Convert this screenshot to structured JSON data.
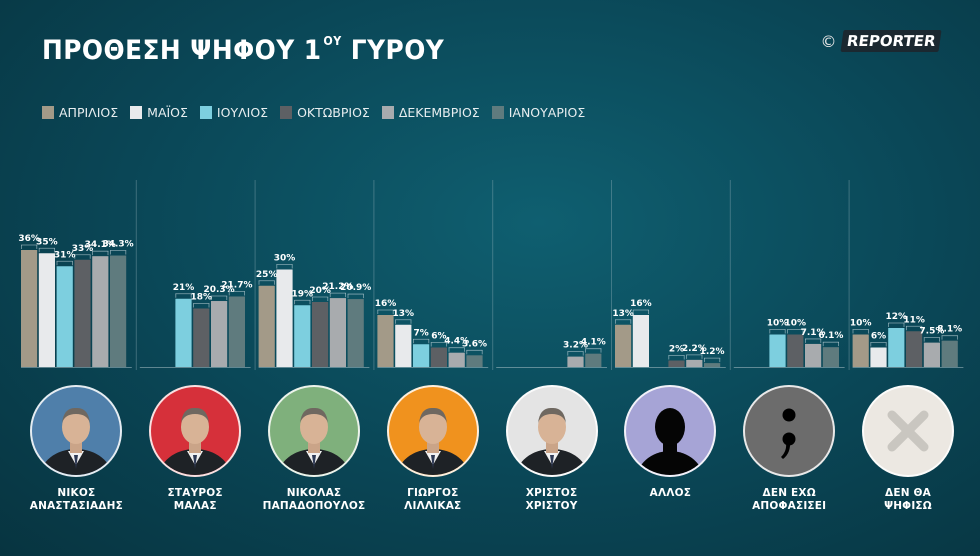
{
  "header": {
    "title": "ΠΡΟΘΕΣΗ ΨΗΦΟΥ 1",
    "title_sup": "ΟΥ",
    "title_end": " ΓΥΡΟΥ"
  },
  "logo": {
    "copyright": "©",
    "brand": "REPORTER"
  },
  "colors": {
    "april": "#a39a88",
    "may": "#e8eaec",
    "july": "#7dcfdf",
    "october": "#5d6064",
    "december": "#a8abae",
    "january": "#5f7b7e"
  },
  "chart_data": {
    "type": "bar",
    "series": [
      {
        "name": "ΑΠΡΙΛΙΟΣ",
        "color": "#a39a88"
      },
      {
        "name": "ΜΑΪΟΣ",
        "color": "#e8eaec"
      },
      {
        "name": "ΙΟΥΛΙΟΣ",
        "color": "#7dcfdf"
      },
      {
        "name": "ΟΚΤΩΒΡΙΟΣ",
        "color": "#5d6064"
      },
      {
        "name": "ΔΕΚΕΜΒΡΙΟΣ",
        "color": "#a8abae"
      },
      {
        "name": "ΙΑΝΟΥΑΡΙΟΣ",
        "color": "#5f7b7e"
      }
    ],
    "groups": [
      {
        "name_lines": [
          "ΝΙΚΟΣ",
          "ΑΝΑΣΤΑΣΙΑΔΗΣ"
        ],
        "values": [
          36,
          35,
          31,
          33,
          34.1,
          34.3
        ],
        "labels": [
          "36%",
          "35%",
          "31%",
          "33%",
          "34.1%",
          "34.3%"
        ],
        "avatar_bg": "#4f7faa",
        "avatar": "person"
      },
      {
        "name_lines": [
          "ΣΤΑΥΡΟΣ",
          "ΜΑΛΑΣ"
        ],
        "values": [
          null,
          null,
          21,
          18,
          20.3,
          21.7
        ],
        "labels": [
          "",
          "",
          "21%",
          "18%",
          "20.3%",
          "21.7%"
        ],
        "avatar_bg": "#d6303a",
        "avatar": "person"
      },
      {
        "name_lines": [
          "ΝΙΚΟΛΑΣ",
          "ΠΑΠΑΔΟΠΟΥΛΟΣ"
        ],
        "values": [
          25,
          30,
          19,
          20,
          21.2,
          20.9
        ],
        "labels": [
          "25%",
          "30%",
          "19%",
          "20%",
          "21.2%",
          "20.9%"
        ],
        "avatar_bg": "#7fb07c",
        "avatar": "person"
      },
      {
        "name_lines": [
          "ΓΙΩΡΓΟΣ",
          "ΛΙΛΛΙΚΑΣ"
        ],
        "values": [
          16,
          13,
          7,
          6,
          4.4,
          3.6
        ],
        "labels": [
          "16%",
          "13%",
          "7%",
          "6%",
          "4.4%",
          "3.6%"
        ],
        "avatar_bg": "#f0921e",
        "avatar": "person"
      },
      {
        "name_lines": [
          "ΧΡΙΣΤΟΣ",
          "ΧΡΙΣΤΟΥ"
        ],
        "values": [
          null,
          null,
          null,
          null,
          3.2,
          4.1
        ],
        "labels": [
          "",
          "",
          "",
          "",
          "3.2%",
          "4.1%"
        ],
        "avatar_bg": "#e4e4e4",
        "avatar": "person"
      },
      {
        "name_lines": [
          "ΑΛΛΟΣ"
        ],
        "values": [
          13,
          16,
          null,
          2,
          2.2,
          1.2
        ],
        "labels": [
          "13%",
          "16%",
          "",
          "2%",
          "2.2%",
          "1.2%"
        ],
        "avatar_bg": "#a6a4d6",
        "avatar": "silhouette"
      },
      {
        "name_lines": [
          "ΔΕΝ ΕΧΩ",
          "ΑΠΟΦΑΣΙΣΕΙ"
        ],
        "values": [
          null,
          null,
          10,
          10,
          7.1,
          6.1
        ],
        "labels": [
          "",
          "",
          "10%",
          "10%",
          "7.1%",
          "6.1%"
        ],
        "avatar_bg": "#6c6c6c",
        "avatar": "semicolon"
      },
      {
        "name_lines": [
          "ΔΕΝ ΘΑ",
          "ΨΗΦΙΣΩ"
        ],
        "values": [
          10,
          6,
          12,
          11,
          7.5,
          8.1
        ],
        "labels": [
          "10%",
          "6%",
          "12%",
          "11%",
          "7.5%",
          "8.1%"
        ],
        "avatar_bg": "#ece8e2",
        "avatar": "cross"
      }
    ]
  }
}
